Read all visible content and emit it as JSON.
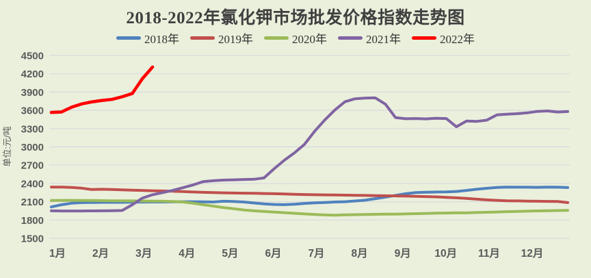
{
  "chart_data": {
    "type": "line",
    "title": "2018-2022年氯化钾市场批发价格指数走势图",
    "ylabel": "单位:元/吨",
    "ylim": [
      1500,
      4500
    ],
    "yticks": [
      4500,
      4200,
      3900,
      3600,
      3300,
      3000,
      2700,
      2400,
      2100,
      1800,
      1500
    ],
    "x_categories": [
      "1月",
      "2月",
      "3月",
      "4月",
      "5月",
      "6月",
      "7月",
      "8月",
      "9月",
      "10月",
      "11月",
      "12月"
    ],
    "x_resolution": "weekly",
    "grid": "horizontal",
    "legend_position": "top",
    "colors": {
      "background": "#EAF0DC",
      "gridline": "#D9D9DE",
      "title_text": "#3F3F3F",
      "axis_text": "#595959"
    },
    "series": [
      {
        "name": "2018年",
        "color": "#4F81BD",
        "values": [
          2015,
          2050,
          2075,
          2085,
          2088,
          2090,
          2090,
          2090,
          2092,
          2094,
          2095,
          2095,
          2098,
          2100,
          2100,
          2098,
          2096,
          2108,
          2105,
          2095,
          2080,
          2065,
          2055,
          2052,
          2060,
          2072,
          2082,
          2088,
          2095,
          2100,
          2112,
          2125,
          2150,
          2175,
          2205,
          2232,
          2250,
          2255,
          2260,
          2262,
          2268,
          2285,
          2305,
          2320,
          2335,
          2340,
          2338,
          2338,
          2336,
          2340,
          2338,
          2333
        ]
      },
      {
        "name": "2019年",
        "color": "#C0504D",
        "values": [
          2340,
          2340,
          2335,
          2322,
          2300,
          2305,
          2300,
          2295,
          2290,
          2285,
          2280,
          2276,
          2272,
          2266,
          2260,
          2254,
          2250,
          2246,
          2243,
          2240,
          2238,
          2235,
          2232,
          2228,
          2222,
          2218,
          2215,
          2212,
          2210,
          2208,
          2206,
          2203,
          2200,
          2198,
          2195,
          2192,
          2188,
          2184,
          2180,
          2172,
          2164,
          2154,
          2142,
          2130,
          2122,
          2116,
          2113,
          2110,
          2108,
          2106,
          2103,
          2085
        ]
      },
      {
        "name": "2020年",
        "color": "#9BBB59",
        "values": [
          2120,
          2122,
          2122,
          2121,
          2120,
          2118,
          2116,
          2115,
          2113,
          2111,
          2110,
          2108,
          2105,
          2095,
          2075,
          2050,
          2028,
          2005,
          1985,
          1965,
          1950,
          1940,
          1930,
          1920,
          1910,
          1900,
          1890,
          1883,
          1880,
          1884,
          1888,
          1891,
          1893,
          1895,
          1897,
          1900,
          1904,
          1908,
          1912,
          1915,
          1919,
          1917,
          1922,
          1927,
          1932,
          1937,
          1941,
          1945,
          1949,
          1952,
          1955,
          1958
        ]
      },
      {
        "name": "2021年",
        "color": "#8064A2",
        "values": [
          1950,
          1948,
          1948,
          1948,
          1949,
          1950,
          1952,
          1956,
          2050,
          2160,
          2215,
          2250,
          2285,
          2330,
          2375,
          2430,
          2445,
          2455,
          2460,
          2465,
          2468,
          2490,
          2640,
          2780,
          2900,
          3040,
          3255,
          3440,
          3605,
          3740,
          3790,
          3800,
          3805,
          3700,
          3480,
          3462,
          3465,
          3460,
          3470,
          3465,
          3330,
          3425,
          3418,
          3438,
          3525,
          3536,
          3545,
          3558,
          3582,
          3590,
          3572,
          3580
        ]
      },
      {
        "name": "2022年",
        "color": "#FF0000",
        "values": [
          3565,
          3572,
          3650,
          3705,
          3738,
          3762,
          3780,
          3822,
          3875,
          4120,
          4310
        ]
      }
    ]
  }
}
